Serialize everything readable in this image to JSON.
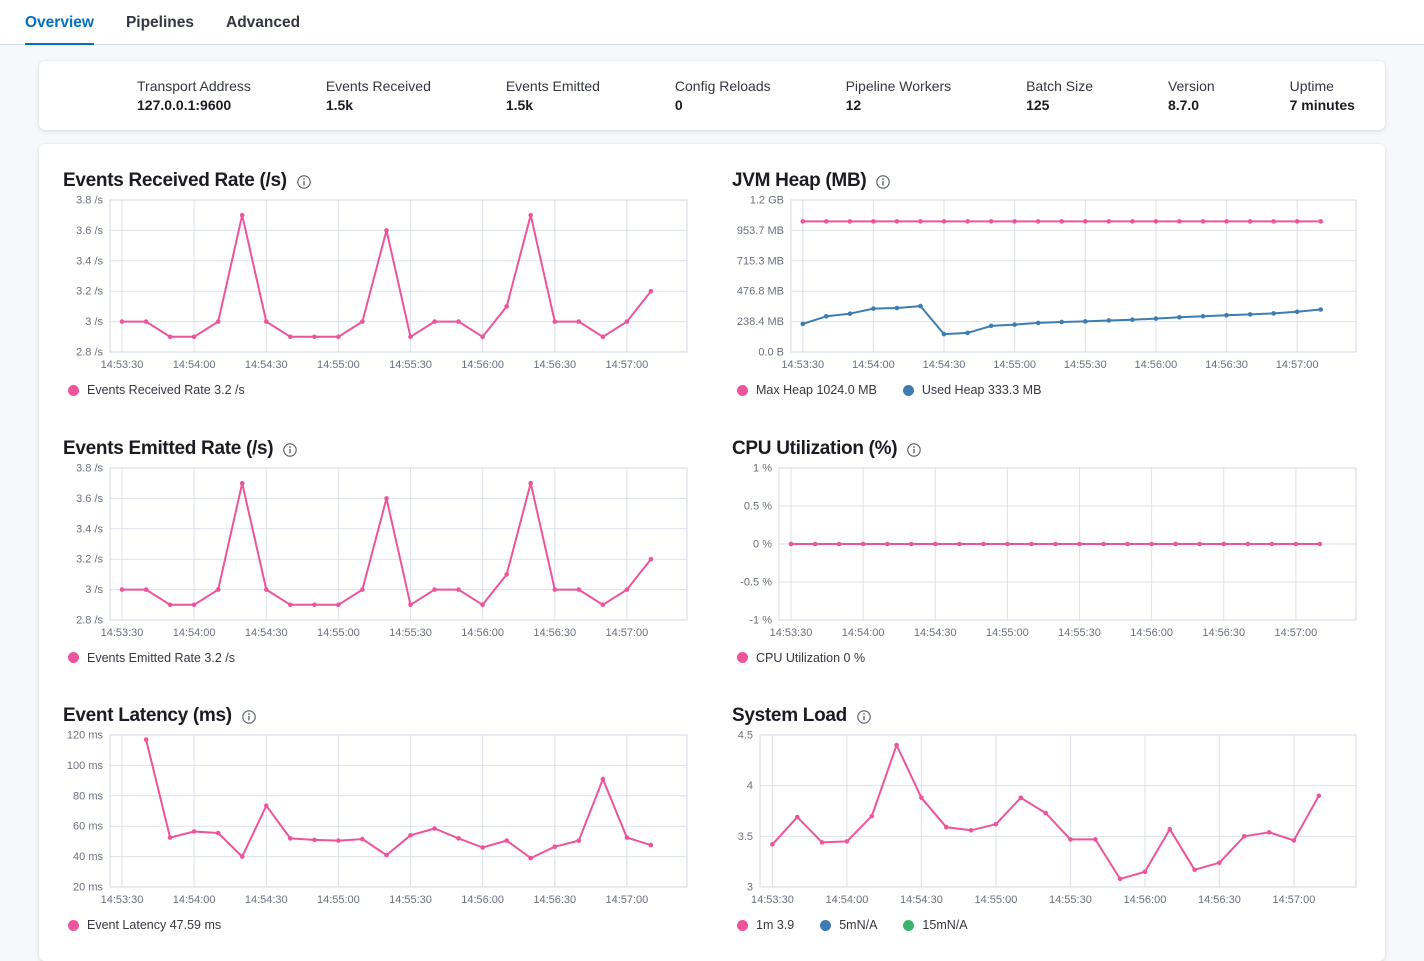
{
  "colors": {
    "pink": "#ED549B",
    "blue": "#3D7DB2",
    "green": "#3BB36A",
    "tab_active": "#0071C2"
  },
  "tabs": [
    {
      "label": "Overview",
      "active": true
    },
    {
      "label": "Pipelines",
      "active": false
    },
    {
      "label": "Advanced",
      "active": false
    }
  ],
  "stats": [
    {
      "label": "Transport Address",
      "value": "127.0.0.1:9600"
    },
    {
      "label": "Events Received",
      "value": "1.5k"
    },
    {
      "label": "Events Emitted",
      "value": "1.5k"
    },
    {
      "label": "Config Reloads",
      "value": "0"
    },
    {
      "label": "Pipeline Workers",
      "value": "12"
    },
    {
      "label": "Batch Size",
      "value": "125"
    },
    {
      "label": "Version",
      "value": "8.7.0"
    },
    {
      "label": "Uptime",
      "value": "7 minutes"
    }
  ],
  "x_ticks": [
    "14:53:30",
    "14:54:00",
    "14:54:30",
    "14:55:00",
    "14:55:30",
    "14:56:00",
    "14:56:30",
    "14:57:00"
  ],
  "charts": [
    {
      "id": "events-received-rate",
      "title": "Events Received Rate (/s)",
      "type": "line",
      "ylim": [
        2.8,
        3.8
      ],
      "y_ticks": [
        {
          "v": 2.8,
          "label": "2.8 /s"
        },
        {
          "v": 3.0,
          "label": "3 /s"
        },
        {
          "v": 3.2,
          "label": "3.2 /s"
        },
        {
          "v": 3.4,
          "label": "3.4 /s"
        },
        {
          "v": 3.6,
          "label": "3.6 /s"
        },
        {
          "v": 3.8,
          "label": "3.8 /s"
        }
      ],
      "series": [
        {
          "name": "Events Received Rate",
          "color": "#ED549B",
          "x_start_s": 0,
          "x_step_s": 10,
          "values": [
            3,
            3,
            2.9,
            2.9,
            3,
            3.7,
            3,
            2.9,
            2.9,
            2.9,
            3,
            3.6,
            2.9,
            3,
            3,
            2.9,
            3.1,
            3.7,
            3,
            3,
            2.9,
            3,
            3.2
          ]
        }
      ],
      "legend": [
        {
          "label": "Events Received Rate 3.2 /s",
          "color": "#ED549B"
        }
      ]
    },
    {
      "id": "jvm-heap",
      "title": "JVM Heap (MB)",
      "type": "line",
      "ylim": [
        0,
        1192.1
      ],
      "y_ticks": [
        {
          "v": 0,
          "label": "0.0 B"
        },
        {
          "v": 238.4,
          "label": "238.4 MB"
        },
        {
          "v": 476.8,
          "label": "476.8 MB"
        },
        {
          "v": 715.3,
          "label": "715.3 MB"
        },
        {
          "v": 953.7,
          "label": "953.7 MB"
        },
        {
          "v": 1192.1,
          "label": "1.2 GB"
        }
      ],
      "series": [
        {
          "name": "Max Heap",
          "color": "#ED549B",
          "x_start_s": 0,
          "x_step_s": 10,
          "values": [
            1024,
            1024,
            1024,
            1024,
            1024,
            1024,
            1024,
            1024,
            1024,
            1024,
            1024,
            1024,
            1024,
            1024,
            1024,
            1024,
            1024,
            1024,
            1024,
            1024,
            1024,
            1024,
            1024
          ]
        },
        {
          "name": "Used Heap",
          "color": "#3D7DB2",
          "x_start_s": 0,
          "x_step_s": 10,
          "values": [
            220,
            280,
            300,
            340,
            345,
            360,
            140,
            150,
            205,
            215,
            228,
            235,
            240,
            247,
            253,
            262,
            272,
            280,
            288,
            295,
            303,
            315,
            333.3
          ]
        }
      ],
      "legend": [
        {
          "label": "Max Heap 1024.0 MB",
          "color": "#ED549B"
        },
        {
          "label": "Used Heap 333.3 MB",
          "color": "#3D7DB2"
        }
      ]
    },
    {
      "id": "events-emitted-rate",
      "title": "Events Emitted Rate (/s)",
      "type": "line",
      "ylim": [
        2.8,
        3.8
      ],
      "y_ticks": [
        {
          "v": 2.8,
          "label": "2.8 /s"
        },
        {
          "v": 3.0,
          "label": "3 /s"
        },
        {
          "v": 3.2,
          "label": "3.2 /s"
        },
        {
          "v": 3.4,
          "label": "3.4 /s"
        },
        {
          "v": 3.6,
          "label": "3.6 /s"
        },
        {
          "v": 3.8,
          "label": "3.8 /s"
        }
      ],
      "series": [
        {
          "name": "Events Emitted Rate",
          "color": "#ED549B",
          "x_start_s": 0,
          "x_step_s": 10,
          "values": [
            3,
            3,
            2.9,
            2.9,
            3,
            3.7,
            3,
            2.9,
            2.9,
            2.9,
            3,
            3.6,
            2.9,
            3,
            3,
            2.9,
            3.1,
            3.7,
            3,
            3,
            2.9,
            3,
            3.2
          ]
        }
      ],
      "legend": [
        {
          "label": "Events Emitted Rate 3.2 /s",
          "color": "#ED549B"
        }
      ]
    },
    {
      "id": "cpu-utilization",
      "title": "CPU Utilization (%)",
      "type": "line",
      "ylim": [
        -1,
        1
      ],
      "y_ticks": [
        {
          "v": -1,
          "label": "-1 %"
        },
        {
          "v": -0.5,
          "label": "-0.5 %"
        },
        {
          "v": 0,
          "label": "0 %"
        },
        {
          "v": 0.5,
          "label": "0.5 %"
        },
        {
          "v": 1,
          "label": "1 %"
        }
      ],
      "series": [
        {
          "name": "CPU Utilization",
          "color": "#ED549B",
          "x_start_s": 0,
          "x_step_s": 10,
          "values": [
            0,
            0,
            0,
            0,
            0,
            0,
            0,
            0,
            0,
            0,
            0,
            0,
            0,
            0,
            0,
            0,
            0,
            0,
            0,
            0,
            0,
            0,
            0
          ]
        }
      ],
      "legend": [
        {
          "label": "CPU Utilization 0 %",
          "color": "#ED549B"
        }
      ]
    },
    {
      "id": "event-latency",
      "title": "Event Latency (ms)",
      "type": "line",
      "ylim": [
        20,
        120
      ],
      "y_ticks": [
        {
          "v": 20,
          "label": "20 ms"
        },
        {
          "v": 40,
          "label": "40 ms"
        },
        {
          "v": 60,
          "label": "60 ms"
        },
        {
          "v": 80,
          "label": "80 ms"
        },
        {
          "v": 100,
          "label": "100 ms"
        },
        {
          "v": 120,
          "label": "120 ms"
        }
      ],
      "series": [
        {
          "name": "Event Latency",
          "color": "#ED549B",
          "x_start_s": 10,
          "x_step_s": 10,
          "values": [
            117,
            52.5,
            56.5,
            55.5,
            40,
            73.5,
            52,
            51,
            50.5,
            51.5,
            41,
            54,
            58.5,
            52,
            46,
            50.5,
            39,
            46.5,
            50.5,
            91,
            52.5,
            47.59
          ]
        }
      ],
      "legend": [
        {
          "label": "Event Latency 47.59 ms",
          "color": "#ED549B"
        }
      ]
    },
    {
      "id": "system-load",
      "title": "System Load",
      "type": "line",
      "ylim": [
        3,
        4.5
      ],
      "y_ticks": [
        {
          "v": 3,
          "label": "3"
        },
        {
          "v": 3.5,
          "label": "3.5"
        },
        {
          "v": 4,
          "label": "4"
        },
        {
          "v": 4.5,
          "label": "4.5"
        }
      ],
      "series": [
        {
          "name": "1m",
          "color": "#ED549B",
          "x_start_s": 0,
          "x_step_s": 10,
          "values": [
            3.42,
            3.69,
            3.44,
            3.45,
            3.7,
            4.4,
            3.88,
            3.59,
            3.56,
            3.62,
            3.88,
            3.73,
            3.47,
            3.47,
            3.08,
            3.15,
            3.57,
            3.17,
            3.24,
            3.5,
            3.54,
            3.46,
            3.9
          ]
        }
      ],
      "legend": [
        {
          "label": "1m 3.9",
          "color": "#ED549B"
        },
        {
          "label": "5mN/A",
          "color": "#3D7DB2"
        },
        {
          "label": "15mN/A",
          "color": "#3BB36A"
        }
      ]
    }
  ]
}
